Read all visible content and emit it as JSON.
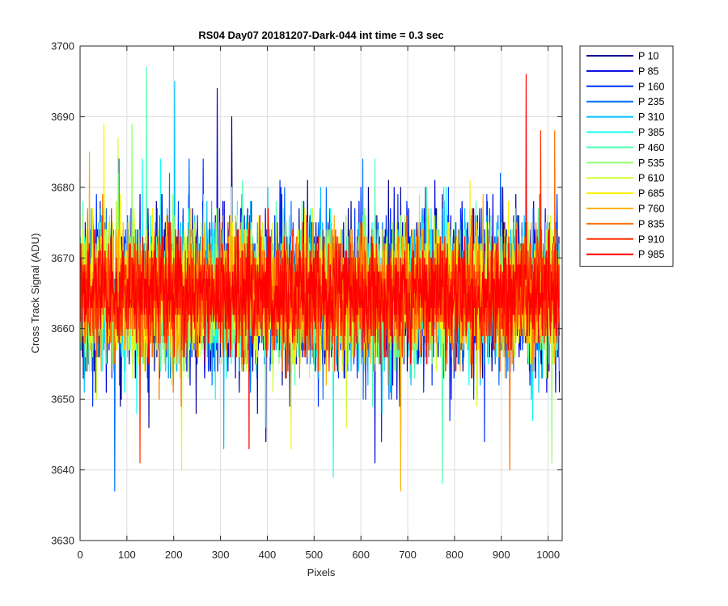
{
  "chart_data": {
    "type": "line",
    "title": "RS04 Day07 20181207-Dark-044 int time = 0.3 sec",
    "xlabel": "Pixels",
    "ylabel": "Cross Track Signal (ADU)",
    "xlim": [
      0,
      1030
    ],
    "ylim": [
      3630,
      3700
    ],
    "xticks": [
      0,
      100,
      200,
      300,
      400,
      500,
      600,
      700,
      800,
      900,
      1000
    ],
    "yticks": [
      3630,
      3640,
      3650,
      3660,
      3670,
      3680,
      3690,
      3700
    ],
    "grid": true,
    "legend_position": "outside-right",
    "points_per_series": 1024,
    "signal_mean": 3665,
    "typical_range": [
      3650,
      3680
    ],
    "series": [
      {
        "name": "P 10",
        "color": "#00008f",
        "max": 3690,
        "min": 3644
      },
      {
        "name": "P 85",
        "color": "#0000df",
        "max": 3694,
        "min": 3641
      },
      {
        "name": "P 160",
        "color": "#0030ff",
        "max": 3684,
        "min": 3644
      },
      {
        "name": "P 235",
        "color": "#0070ff",
        "max": 3684,
        "min": 3637
      },
      {
        "name": "P 310",
        "color": "#00bfff",
        "max": 3695,
        "min": 3643
      },
      {
        "name": "P 385",
        "color": "#10ffef",
        "max": 3684,
        "min": 3639
      },
      {
        "name": "P 460",
        "color": "#50ffaf",
        "max": 3697,
        "min": 3638
      },
      {
        "name": "P 535",
        "color": "#8fff70",
        "max": 3689,
        "min": 3641
      },
      {
        "name": "P 610",
        "color": "#cfff30",
        "max": 3687,
        "min": 3640
      },
      {
        "name": "P 685",
        "color": "#ffef00",
        "max": 3689,
        "min": 3643
      },
      {
        "name": "P 760",
        "color": "#ffaf00",
        "max": 3685,
        "min": 3637
      },
      {
        "name": "P 835",
        "color": "#ff7000",
        "max": 3688,
        "min": 3640
      },
      {
        "name": "P 910",
        "color": "#ff3000",
        "max": 3688,
        "min": 3641
      },
      {
        "name": "P 985",
        "color": "#ff0000",
        "max": 3696,
        "min": 3643
      }
    ]
  }
}
